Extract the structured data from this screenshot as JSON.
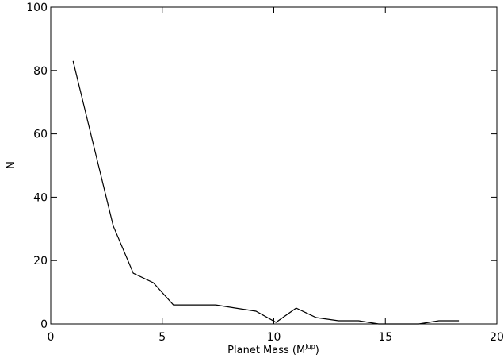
{
  "chart_data": {
    "type": "line",
    "xlabel": "Planet Mass (M",
    "xlabel_sup": "Jup",
    "xlabel_close": ")",
    "ylabel": "N",
    "xlim": [
      0,
      20
    ],
    "ylim": [
      0,
      100
    ],
    "xticks": [
      0,
      5,
      10,
      15,
      20
    ],
    "yticks": [
      0,
      20,
      40,
      60,
      80,
      100
    ],
    "grid": false,
    "colors": {
      "line": "#000000",
      "axes": "#000000",
      "background": "#ffffff"
    },
    "series": [
      {
        "x": [
          1.0,
          1.9,
          2.8,
          3.7,
          4.6,
          5.5,
          6.4,
          7.4,
          8.3,
          9.2,
          10.1,
          11.0,
          11.9,
          12.9,
          13.8,
          14.7,
          15.6,
          16.5,
          17.4,
          18.3
        ],
        "y": [
          83,
          57,
          31,
          16,
          13,
          6,
          6,
          6,
          5,
          4,
          0.5,
          5,
          2,
          1,
          1,
          0,
          0,
          0,
          1,
          1
        ]
      }
    ]
  }
}
